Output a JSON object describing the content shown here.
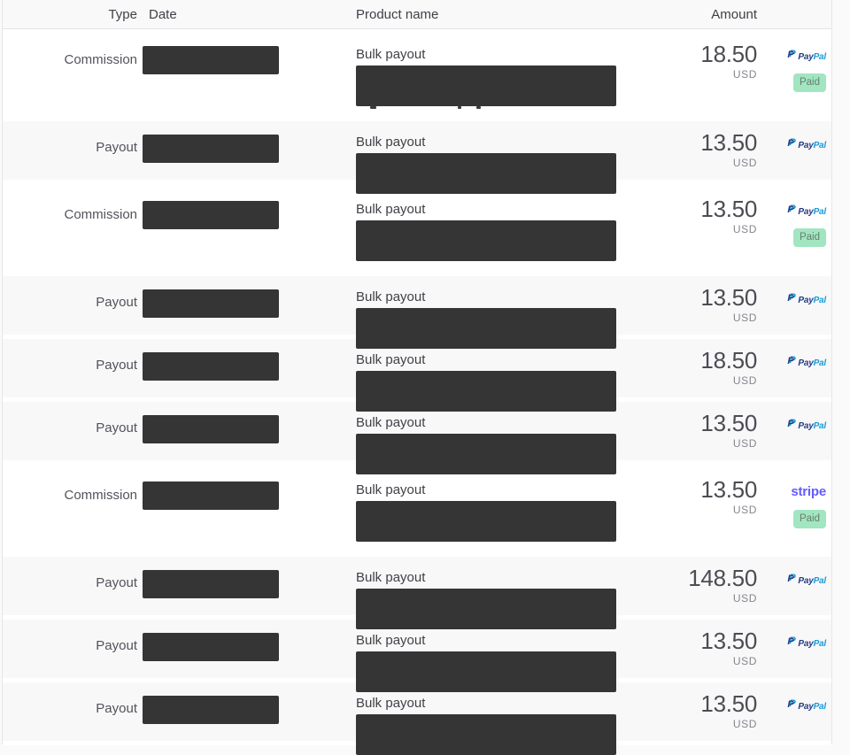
{
  "header": {
    "columns": [
      {
        "id": "type",
        "label": "Type"
      },
      {
        "id": "date",
        "label": "Date"
      },
      {
        "id": "product",
        "label": "Product name"
      },
      {
        "id": "amount",
        "label": "Amount"
      }
    ]
  },
  "rows": [
    {
      "type": "Commission",
      "date_redacted": true,
      "product": "Bulk payout",
      "product_details_redacted": true,
      "redaction_remnant": true,
      "amount": "18.50",
      "currency": "USD",
      "method": "paypal",
      "status": "Paid"
    },
    {
      "type": "Payout",
      "date_redacted": true,
      "product": "Bulk payout",
      "product_details_redacted": true,
      "redaction_remnant": false,
      "amount": "13.50",
      "currency": "USD",
      "method": "paypal",
      "status": null
    },
    {
      "type": "Commission",
      "date_redacted": true,
      "product": "Bulk payout",
      "product_details_redacted": true,
      "redaction_remnant": false,
      "amount": "13.50",
      "currency": "USD",
      "method": "paypal",
      "status": "Paid"
    },
    {
      "type": "Payout",
      "date_redacted": true,
      "product": "Bulk payout",
      "product_details_redacted": true,
      "redaction_remnant": false,
      "amount": "13.50",
      "currency": "USD",
      "method": "paypal",
      "status": null
    },
    {
      "type": "Payout",
      "date_redacted": true,
      "product": "Bulk payout",
      "product_details_redacted": true,
      "redaction_remnant": false,
      "amount": "18.50",
      "currency": "USD",
      "method": "paypal",
      "status": null
    },
    {
      "type": "Payout",
      "date_redacted": true,
      "product": "Bulk payout",
      "product_details_redacted": true,
      "redaction_remnant": false,
      "amount": "13.50",
      "currency": "USD",
      "method": "paypal",
      "status": null
    },
    {
      "type": "Commission",
      "date_redacted": true,
      "product": "Bulk payout",
      "product_details_redacted": true,
      "redaction_remnant": false,
      "amount": "13.50",
      "currency": "USD",
      "method": "stripe",
      "status": "Paid"
    },
    {
      "type": "Payout",
      "date_redacted": true,
      "product": "Bulk payout",
      "product_details_redacted": true,
      "redaction_remnant": false,
      "amount": "148.50",
      "currency": "USD",
      "method": "paypal",
      "status": null
    },
    {
      "type": "Payout",
      "date_redacted": true,
      "product": "Bulk payout",
      "product_details_redacted": true,
      "redaction_remnant": false,
      "amount": "13.50",
      "currency": "USD",
      "method": "paypal",
      "status": null
    },
    {
      "type": "Payout",
      "date_redacted": true,
      "product": "Bulk payout",
      "product_details_redacted": true,
      "redaction_remnant": false,
      "amount": "13.50",
      "currency": "USD",
      "method": "paypal",
      "status": null
    }
  ],
  "branding": {
    "paypal_monogram": "P",
    "paypal_word_part1": "Pay",
    "paypal_word_part2": "Pal",
    "stripe_label": "stripe",
    "paid_badge_label": "Paid",
    "colors": {
      "paypal_navy": "#253b80",
      "paypal_blue": "#179bd7",
      "stripe_purple": "#635bff",
      "paid_badge_bg": "#a2e5c1",
      "paid_badge_text": "#66806f",
      "redaction_box": "#353535",
      "payout_row_band": "#f8f8f9"
    }
  }
}
